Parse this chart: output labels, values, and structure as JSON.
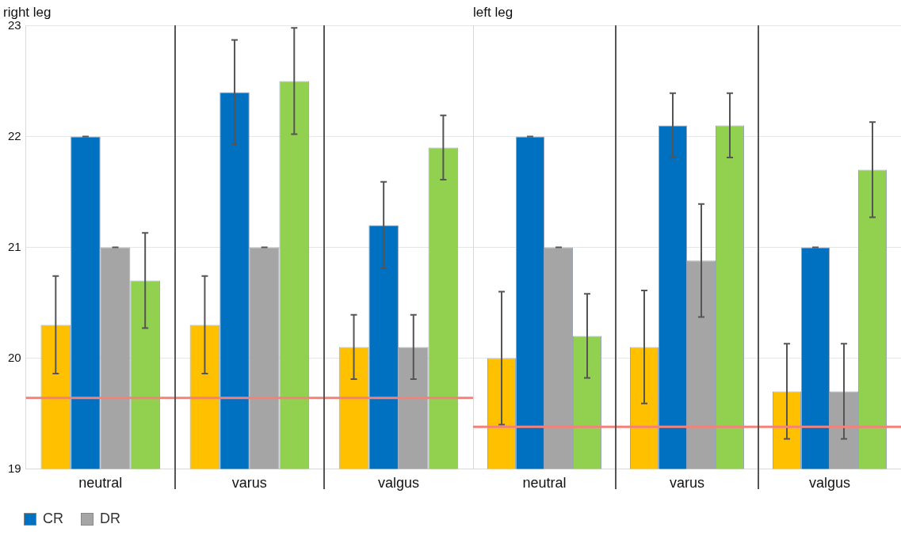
{
  "chart_data": [
    {
      "type": "bar",
      "title": "right leg",
      "categories": [
        "neutral",
        "varus",
        "valgus"
      ],
      "series": [
        {
          "color": "#ffc000",
          "values": [
            20.3,
            20.3,
            20.1
          ],
          "errors": [
            0.44,
            0.44,
            0.29
          ]
        },
        {
          "name": "CR",
          "color": "#0070c0",
          "values": [
            22.0,
            22.4,
            21.2
          ],
          "errors": [
            0,
            0.47,
            0.39
          ]
        },
        {
          "name": "DR",
          "color": "#a5a5a5",
          "values": [
            21.0,
            21.0,
            20.1
          ],
          "errors": [
            0,
            0,
            0.29
          ]
        },
        {
          "color": "#92d050",
          "values": [
            20.7,
            22.5,
            21.9
          ],
          "errors": [
            0.43,
            0.48,
            0.29
          ]
        }
      ],
      "ylim": [
        19,
        23
      ],
      "yticks": [
        19,
        20,
        21,
        22,
        23
      ],
      "grid": "y",
      "legend": "bottom left",
      "ref_lines": [
        {
          "axis": "y",
          "value": 19.64,
          "color": "#f4827a"
        }
      ]
    },
    {
      "type": "bar",
      "title": "left leg",
      "categories": [
        "neutral",
        "varus",
        "valgus"
      ],
      "series": [
        {
          "color": "#ffc000",
          "values": [
            20.0,
            20.1,
            19.7
          ],
          "errors": [
            0.6,
            0.51,
            0.43
          ]
        },
        {
          "color": "#0070c0",
          "values": [
            22.0,
            22.1,
            21.0
          ],
          "errors": [
            0,
            0.29,
            0
          ]
        },
        {
          "color": "#a5a5a5",
          "values": [
            21.0,
            20.88,
            19.7
          ],
          "errors": [
            0,
            0.51,
            0.43
          ]
        },
        {
          "color": "#92d050",
          "values": [
            20.2,
            22.1,
            21.7
          ],
          "errors": [
            0.38,
            0.29,
            0.43
          ]
        }
      ],
      "ylim": [
        19,
        23
      ],
      "yticks": [
        19,
        20,
        21,
        22,
        23
      ],
      "grid": "y",
      "tick_labels": "x",
      "ref_lines": [
        {
          "axis": "y",
          "value": 19.38,
          "color": "#f4827a"
        }
      ]
    }
  ]
}
